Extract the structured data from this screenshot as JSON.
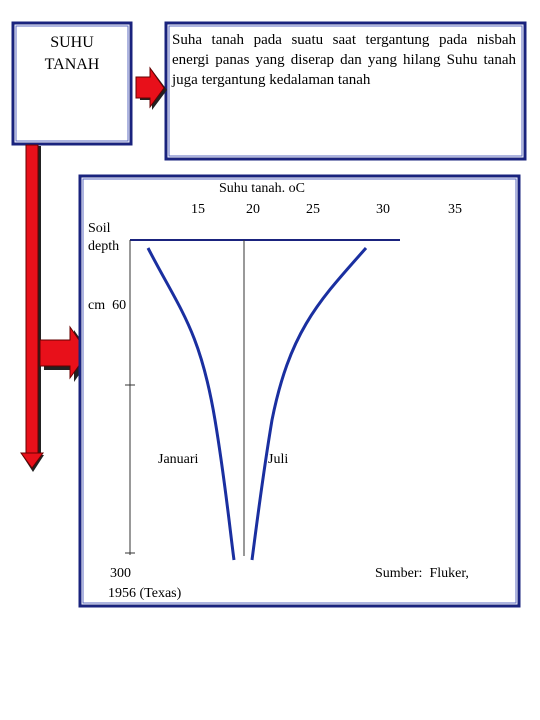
{
  "left_box": {
    "title": "SUHU TANAH"
  },
  "right_box": {
    "text": "Suha tanah pada suatu saat tergantung pada nisbah energi panas yang diserap dan yang hilang Suhu tanah juga tergantung kedalaman tanah"
  },
  "figure": {
    "title": "Suhu tanah. oC",
    "x_tick_labels": [
      "15",
      "20",
      "25",
      "30",
      "35"
    ],
    "y_label": "Soil depth",
    "y_unit_label": "cm  60",
    "y_bottom_label": "300",
    "curve_labels": [
      "Januari",
      "Juli"
    ],
    "source": "Sumber:  Fluker,",
    "source_year": "1956 (Texas)"
  }
}
